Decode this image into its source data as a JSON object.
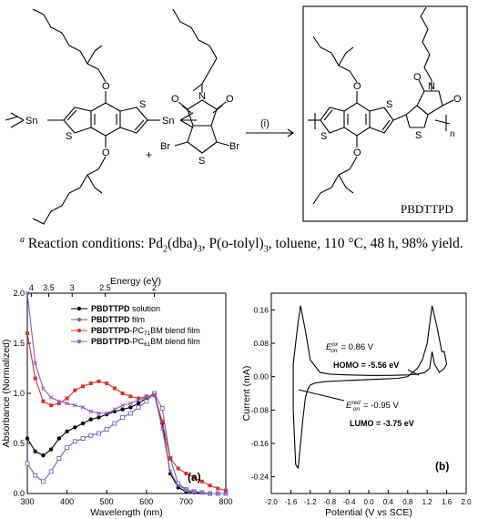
{
  "scheme": {
    "condition_label": "(i)",
    "plus": "+",
    "element_labels": {
      "sn": "Sn",
      "o": "O",
      "s": "S",
      "n": "N",
      "br": "Br",
      "o_carbonyl": "O",
      "n_sub": "n"
    },
    "product_name": "PBDTTPD"
  },
  "caption": {
    "marker": "a",
    "text_before": " Reaction conditions: Pd",
    "sub1": "2",
    "mid1": "(dba)",
    "sub2": "3",
    "mid2": ", P(o-tolyl)",
    "sub3": "3",
    "text_after": ", toluene, 110 °C, 48 h, 98% yield."
  },
  "chart_data": [
    {
      "type": "line",
      "panel_label": "(a)",
      "xlabel": "Wavelength (nm)",
      "ylabel": "Absorbance (Normalized)",
      "top_xlabel": "Energy (eV)",
      "xlim": [
        300,
        800
      ],
      "ylim": [
        0,
        2.0
      ],
      "x_ticks": [
        300,
        400,
        500,
        600,
        700,
        800
      ],
      "y_ticks": [
        "0.0",
        "0.5",
        "1.0",
        "1.5",
        "2.0"
      ],
      "top_ticks": [
        {
          "label": "4",
          "nm": 310
        },
        {
          "label": "3.5",
          "nm": 354
        },
        {
          "label": "3",
          "nm": 413
        },
        {
          "label": "2.5",
          "nm": 496
        },
        {
          "label": "2",
          "nm": 620
        }
      ],
      "colors": {
        "solution": "#000000",
        "film": "#6a6ab8",
        "pc71": "#e03030",
        "pc61": "#8a5cc0"
      },
      "legend": [
        {
          "key": "solution",
          "bold": "PBDTTPD",
          "rest": " solution"
        },
        {
          "key": "film",
          "bold": "PBDTTPD",
          "rest": " film"
        },
        {
          "key": "pc71",
          "bold": "PBDTTPD",
          "rest": "-PC",
          "sub": "71",
          "rest2": "BM blend film"
        },
        {
          "key": "pc61",
          "bold": "PBDTTPD",
          "rest": "-PC",
          "sub": "61",
          "rest2": "BM blend film"
        }
      ],
      "series": [
        {
          "key": "solution",
          "marker": "circle-filled",
          "x": [
            300,
            320,
            340,
            360,
            380,
            400,
            420,
            440,
            460,
            480,
            500,
            520,
            540,
            560,
            580,
            600,
            620,
            640,
            660,
            680,
            700,
            720,
            740,
            760,
            780,
            800
          ],
          "y": [
            0.55,
            0.42,
            0.38,
            0.44,
            0.55,
            0.62,
            0.66,
            0.7,
            0.74,
            0.76,
            0.79,
            0.82,
            0.84,
            0.86,
            0.9,
            0.95,
            1.0,
            0.7,
            0.2,
            0.06,
            0.02,
            0.01,
            0.01,
            0.0,
            0.0,
            0.0
          ]
        },
        {
          "key": "film",
          "marker": "square-open",
          "x": [
            300,
            320,
            340,
            360,
            380,
            400,
            420,
            440,
            460,
            480,
            500,
            520,
            540,
            560,
            580,
            600,
            620,
            640,
            660,
            680,
            700,
            720,
            740,
            760,
            780,
            800
          ],
          "y": [
            0.3,
            0.18,
            0.12,
            0.22,
            0.35,
            0.46,
            0.52,
            0.55,
            0.58,
            0.6,
            0.64,
            0.7,
            0.76,
            0.8,
            0.86,
            0.92,
            1.0,
            0.85,
            0.35,
            0.1,
            0.04,
            0.02,
            0.01,
            0.0,
            0.0,
            0.0
          ]
        },
        {
          "key": "pc71",
          "marker": "square-filled",
          "x": [
            300,
            320,
            340,
            360,
            380,
            400,
            420,
            440,
            460,
            480,
            500,
            520,
            540,
            560,
            580,
            600,
            620,
            640,
            660,
            680,
            700,
            720,
            740,
            760,
            780,
            800
          ],
          "y": [
            1.6,
            1.15,
            0.92,
            0.88,
            0.9,
            0.95,
            1.03,
            1.07,
            1.1,
            1.12,
            1.1,
            1.05,
            1.0,
            0.97,
            0.95,
            0.97,
            0.98,
            0.72,
            0.35,
            0.25,
            0.2,
            0.16,
            0.12,
            0.08,
            0.05,
            0.03
          ]
        },
        {
          "key": "pc61",
          "marker": "cross",
          "x": [
            300,
            320,
            340,
            360,
            380,
            400,
            420,
            440,
            460,
            480,
            500,
            520,
            540,
            560,
            580,
            600,
            620,
            640,
            660,
            680,
            700,
            720,
            740,
            760,
            780,
            800
          ],
          "y": [
            2.0,
            1.3,
            1.05,
            0.96,
            0.92,
            0.9,
            0.88,
            0.86,
            0.82,
            0.8,
            0.8,
            0.84,
            0.88,
            0.9,
            0.93,
            0.96,
            0.99,
            0.65,
            0.22,
            0.08,
            0.04,
            0.02,
            0.01,
            0.0,
            0.0,
            0.0
          ]
        }
      ]
    },
    {
      "type": "line",
      "panel_label": "(b)",
      "xlabel": "Potential (V vs SCE)",
      "ylabel": "Current (mA)",
      "xlim": [
        -2.0,
        2.0
      ],
      "ylim": [
        -0.28,
        0.2
      ],
      "x_ticks": [
        "-2.0",
        "-1.6",
        "-1.2",
        "-0.8",
        "-0.4",
        "0.0",
        "0.4",
        "0.8",
        "1.2",
        "1.6",
        "2.0"
      ],
      "y_ticks": [
        "-0.24",
        "-0.16",
        "-0.08",
        "0.00",
        "0.08",
        "0.16"
      ],
      "annotations": {
        "eox_sym": "E",
        "eox_sup": "ox",
        "eox_sub": "on",
        "eox_val": "= 0.86 V",
        "homo": "HOMO = -5.56 eV",
        "ered_sym": "E",
        "ered_sup": "red",
        "ered_sub": "on",
        "ered_val": "= -0.95 V",
        "lumo": "LUMO = -3.75 eV"
      },
      "series": [
        {
          "key": "cv",
          "x": [
            -1.45,
            -1.4,
            -1.35,
            -1.3,
            -1.25,
            -1.2,
            -1.1,
            -0.9,
            -0.6,
            -0.2,
            0.2,
            0.6,
            0.8,
            0.9,
            1.0,
            1.1,
            1.2,
            1.3,
            1.4,
            1.5,
            1.55,
            1.6,
            1.55,
            1.45,
            1.35,
            1.3,
            1.25,
            1.15,
            1.0,
            0.8,
            0.4,
            0.0,
            -0.4,
            -0.8,
            -1.0,
            -1.2,
            -1.3,
            -1.4,
            -1.45,
            -1.5,
            -1.55,
            -1.55,
            -1.5,
            -1.45
          ],
          "y": [
            -0.22,
            -0.16,
            -0.1,
            -0.05,
            -0.03,
            -0.02,
            -0.015,
            -0.012,
            -0.01,
            -0.008,
            -0.006,
            -0.004,
            0.0,
            0.01,
            0.02,
            0.04,
            0.08,
            0.17,
            0.12,
            0.06,
            0.06,
            0.03,
            0.02,
            0.01,
            0.03,
            0.06,
            0.02,
            0.01,
            0.006,
            0.004,
            0.003,
            0.003,
            0.004,
            0.006,
            0.01,
            0.04,
            0.11,
            0.17,
            0.13,
            0.08,
            0.03,
            -0.08,
            -0.21,
            -0.22
          ]
        }
      ]
    }
  ]
}
